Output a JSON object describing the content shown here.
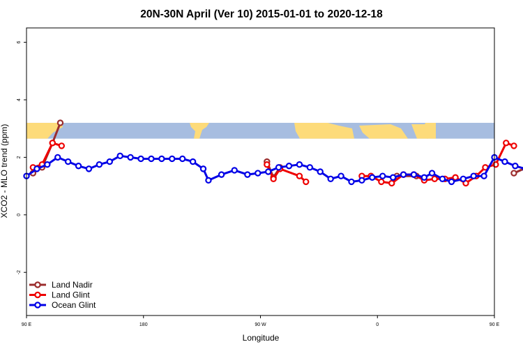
{
  "chart_data": {
    "type": "line",
    "title": "20N-30N April (Ver 10)   2015-01-01 to 2020-12-18",
    "xlabel": "Longitude",
    "ylabel": "XCO2 - MLO trend (ppm)",
    "xlim": [
      0,
      360
    ],
    "ylim": [
      -3.5,
      6.5
    ],
    "x_ticks": [
      {
        "value": 0,
        "label": "90 E"
      },
      {
        "value": 90,
        "label": "180"
      },
      {
        "value": 180,
        "label": "90 W"
      },
      {
        "value": 270,
        "label": "0"
      },
      {
        "value": 360,
        "label": "90 E"
      },
      {
        "value": 450,
        "label": "180"
      }
    ],
    "y_ticks": [
      {
        "value": -2,
        "label": "-2"
      },
      {
        "value": 0,
        "label": "0"
      },
      {
        "value": 2,
        "label": "2"
      },
      {
        "value": 4,
        "label": "4"
      },
      {
        "value": 6,
        "label": "6"
      }
    ],
    "map_band": {
      "ymin": 2.65,
      "ymax": 3.2,
      "ocean_color": "#a7bde0",
      "land_color": "#fddb7a"
    },
    "legend_position": "bottom-left",
    "series": [
      {
        "name": "Land Nadir",
        "color": "#9b2d2d",
        "segments": [
          [
            [
              5,
              1.45
            ],
            [
              12,
              1.65
            ],
            [
              20,
              2.5
            ],
            [
              26,
              3.2
            ]
          ],
          [
            [
              185,
              1.85
            ],
            [
              190,
              1.3
            ],
            [
              195,
              1.65
            ]
          ],
          [
            [
              285,
              1.35
            ],
            [
              300,
              1.35
            ]
          ],
          [
            [
              375,
              1.45
            ],
            [
              385,
              1.65
            ],
            [
              395,
              2.5
            ],
            [
              401,
              3.2
            ]
          ]
        ]
      },
      {
        "name": "Land Glint",
        "color": "#ee0000",
        "segments": [
          [
            [
              5,
              1.65
            ],
            [
              12,
              1.75
            ],
            [
              20,
              2.5
            ],
            [
              27,
              2.4
            ]
          ],
          [
            [
              185,
              1.75
            ],
            [
              190,
              1.25
            ],
            [
              195,
              1.6
            ],
            [
              210,
              1.35
            ],
            [
              215,
              1.15
            ]
          ],
          [
            [
              258,
              1.35
            ],
            [
              265,
              1.35
            ],
            [
              273,
              1.15
            ],
            [
              281,
              1.1
            ],
            [
              290,
              1.4
            ],
            [
              298,
              1.4
            ],
            [
              306,
              1.2
            ],
            [
              314,
              1.25
            ],
            [
              322,
              1.25
            ],
            [
              330,
              1.3
            ],
            [
              338,
              1.1
            ],
            [
              346,
              1.35
            ],
            [
              353,
              1.65
            ],
            [
              361,
              1.75
            ],
            [
              369,
              2.5
            ],
            [
              375,
              2.4
            ]
          ]
        ]
      },
      {
        "name": "Ocean Glint",
        "color": "#0000e6",
        "segments": [
          [
            [
              0,
              1.35
            ],
            [
              8,
              1.6
            ],
            [
              16,
              1.75
            ],
            [
              24,
              2.0
            ],
            [
              32,
              1.85
            ],
            [
              40,
              1.7
            ],
            [
              48,
              1.6
            ],
            [
              56,
              1.75
            ],
            [
              64,
              1.85
            ],
            [
              72,
              2.05
            ],
            [
              80,
              2.0
            ],
            [
              88,
              1.95
            ],
            [
              96,
              1.95
            ],
            [
              104,
              1.95
            ],
            [
              112,
              1.95
            ],
            [
              120,
              1.95
            ],
            [
              128,
              1.85
            ],
            [
              136,
              1.6
            ],
            [
              140,
              1.2
            ],
            [
              150,
              1.4
            ],
            [
              160,
              1.55
            ],
            [
              170,
              1.4
            ],
            [
              178,
              1.45
            ],
            [
              186,
              1.5
            ],
            [
              194,
              1.65
            ],
            [
              202,
              1.7
            ],
            [
              210,
              1.75
            ],
            [
              218,
              1.65
            ],
            [
              226,
              1.5
            ],
            [
              234,
              1.25
            ],
            [
              242,
              1.35
            ],
            [
              250,
              1.15
            ],
            [
              258,
              1.2
            ],
            [
              266,
              1.3
            ],
            [
              274,
              1.35
            ],
            [
              282,
              1.3
            ],
            [
              290,
              1.4
            ],
            [
              298,
              1.4
            ],
            [
              306,
              1.3
            ],
            [
              312,
              1.45
            ],
            [
              320,
              1.25
            ],
            [
              327,
              1.15
            ],
            [
              336,
              1.25
            ],
            [
              344,
              1.35
            ],
            [
              352,
              1.35
            ],
            [
              360,
              2.0
            ],
            [
              368,
              1.85
            ],
            [
              376,
              1.7
            ],
            [
              384,
              1.6
            ],
            [
              392,
              1.75
            ],
            [
              400,
              1.85
            ],
            [
              408,
              2.05
            ]
          ]
        ]
      }
    ]
  }
}
